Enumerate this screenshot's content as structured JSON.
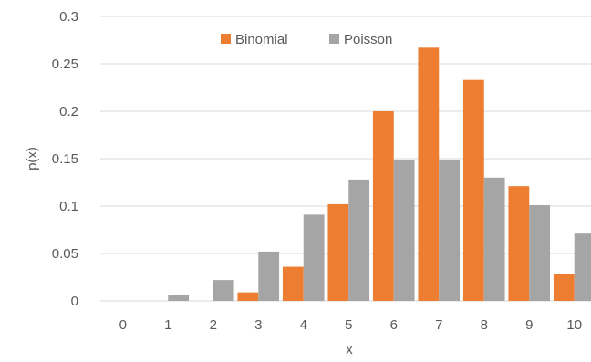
{
  "chart_data": {
    "type": "bar",
    "title": "",
    "xlabel": "x",
    "ylabel": "p(x)",
    "categories": [
      "0",
      "1",
      "2",
      "3",
      "4",
      "5",
      "6",
      "7",
      "8",
      "9",
      "10"
    ],
    "series": [
      {
        "name": "Binomial",
        "color": "#ED7D31",
        "values": [
          0.0,
          0.0,
          0.0,
          0.009,
          0.036,
          0.102,
          0.2,
          0.267,
          0.233,
          0.121,
          0.028
        ]
      },
      {
        "name": "Poisson",
        "color": "#A5A5A5",
        "values": [
          0.0,
          0.006,
          0.022,
          0.052,
          0.091,
          0.128,
          0.149,
          0.149,
          0.13,
          0.101,
          0.071
        ]
      }
    ],
    "ylim": [
      0,
      0.3
    ],
    "yticks": [
      "0",
      "0.05",
      "0.1",
      "0.15",
      "0.2",
      "0.25",
      "0.3"
    ],
    "grid": true,
    "legend": "top-center"
  }
}
